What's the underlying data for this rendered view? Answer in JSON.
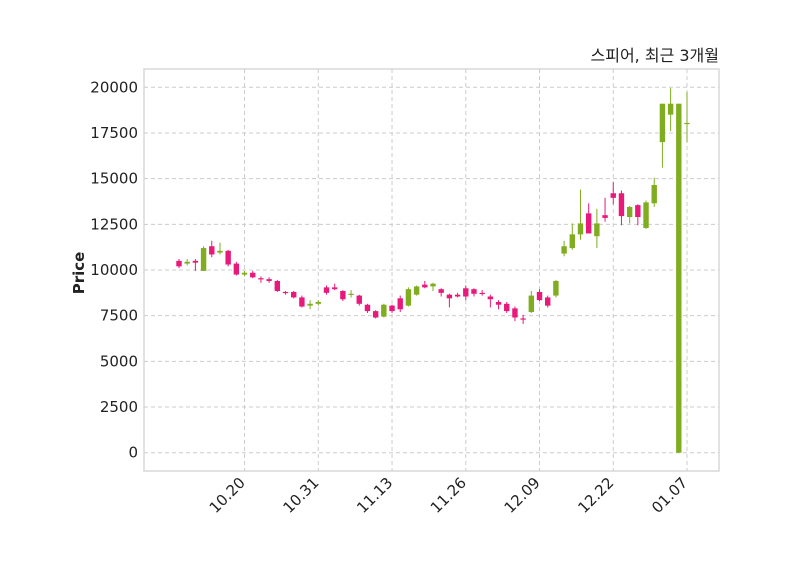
{
  "chart_data": {
    "type": "candlestick",
    "title": "스피어, 최근 3개월",
    "ylabel": "Price",
    "xlabel": "",
    "ylim": [
      -1000,
      21000
    ],
    "yticks": [
      0,
      2500,
      5000,
      7500,
      10000,
      12500,
      15000,
      17500,
      20000
    ],
    "xtick_labels": [
      "10.20",
      "10.31",
      "11.13",
      "11.26",
      "12.09",
      "12.22",
      "01.07"
    ],
    "xtick_indices": [
      8,
      17,
      26,
      35,
      44,
      53,
      62
    ],
    "grid": true,
    "colors": {
      "up": "#7fad1f",
      "down": "#e8197a",
      "grid": "#cccccc",
      "frame": "#d9d9d9"
    },
    "candles": [
      {
        "o": 10500,
        "h": 10600,
        "l": 10100,
        "c": 10200
      },
      {
        "o": 10350,
        "h": 10600,
        "l": 10250,
        "c": 10450
      },
      {
        "o": 10500,
        "h": 10600,
        "l": 9950,
        "c": 10400
      },
      {
        "o": 9950,
        "h": 11300,
        "l": 9950,
        "c": 11200
      },
      {
        "o": 11300,
        "h": 11600,
        "l": 10700,
        "c": 10850
      },
      {
        "o": 10950,
        "h": 11500,
        "l": 10850,
        "c": 11050
      },
      {
        "o": 11050,
        "h": 11100,
        "l": 10200,
        "c": 10300
      },
      {
        "o": 10350,
        "h": 10450,
        "l": 9700,
        "c": 9750
      },
      {
        "o": 9750,
        "h": 9950,
        "l": 9650,
        "c": 9850
      },
      {
        "o": 9850,
        "h": 9950,
        "l": 9550,
        "c": 9600
      },
      {
        "o": 9550,
        "h": 9650,
        "l": 9300,
        "c": 9500
      },
      {
        "o": 9500,
        "h": 9600,
        "l": 9300,
        "c": 9400
      },
      {
        "o": 9400,
        "h": 9450,
        "l": 8800,
        "c": 8850
      },
      {
        "o": 8800,
        "h": 8850,
        "l": 8650,
        "c": 8750
      },
      {
        "o": 8800,
        "h": 8850,
        "l": 8450,
        "c": 8500
      },
      {
        "o": 8500,
        "h": 8600,
        "l": 7950,
        "c": 8000
      },
      {
        "o": 8050,
        "h": 8350,
        "l": 7850,
        "c": 8150
      },
      {
        "o": 8150,
        "h": 8350,
        "l": 8050,
        "c": 8250
      },
      {
        "o": 9050,
        "h": 9150,
        "l": 8650,
        "c": 8750
      },
      {
        "o": 9050,
        "h": 9250,
        "l": 8900,
        "c": 8950
      },
      {
        "o": 8850,
        "h": 8900,
        "l": 8300,
        "c": 8400
      },
      {
        "o": 8650,
        "h": 8900,
        "l": 8500,
        "c": 8700
      },
      {
        "o": 8600,
        "h": 8650,
        "l": 8050,
        "c": 8150
      },
      {
        "o": 8100,
        "h": 8150,
        "l": 7650,
        "c": 7750
      },
      {
        "o": 7750,
        "h": 7800,
        "l": 7350,
        "c": 7400
      },
      {
        "o": 7450,
        "h": 8150,
        "l": 7400,
        "c": 8100
      },
      {
        "o": 8050,
        "h": 8100,
        "l": 7650,
        "c": 7750
      },
      {
        "o": 8450,
        "h": 8600,
        "l": 7700,
        "c": 7850
      },
      {
        "o": 8050,
        "h": 9050,
        "l": 8000,
        "c": 8950
      },
      {
        "o": 8650,
        "h": 9150,
        "l": 8600,
        "c": 9100
      },
      {
        "o": 9200,
        "h": 9400,
        "l": 9000,
        "c": 9050
      },
      {
        "o": 9100,
        "h": 9300,
        "l": 8850,
        "c": 9250
      },
      {
        "o": 8950,
        "h": 9000,
        "l": 8550,
        "c": 8750
      },
      {
        "o": 8650,
        "h": 8700,
        "l": 7950,
        "c": 8450
      },
      {
        "o": 8650,
        "h": 8750,
        "l": 8500,
        "c": 8550
      },
      {
        "o": 9000,
        "h": 9150,
        "l": 8350,
        "c": 8550
      },
      {
        "o": 8950,
        "h": 9000,
        "l": 8550,
        "c": 8700
      },
      {
        "o": 8750,
        "h": 8900,
        "l": 8600,
        "c": 8700
      },
      {
        "o": 8550,
        "h": 8650,
        "l": 7950,
        "c": 8400
      },
      {
        "o": 8250,
        "h": 8350,
        "l": 7850,
        "c": 8100
      },
      {
        "o": 8150,
        "h": 8250,
        "l": 7650,
        "c": 7750
      },
      {
        "o": 7900,
        "h": 8000,
        "l": 7200,
        "c": 7400
      },
      {
        "o": 7350,
        "h": 7550,
        "l": 7050,
        "c": 7300
      },
      {
        "o": 7700,
        "h": 8850,
        "l": 7650,
        "c": 8600
      },
      {
        "o": 8800,
        "h": 8950,
        "l": 8300,
        "c": 8350
      },
      {
        "o": 8500,
        "h": 8600,
        "l": 7950,
        "c": 8050
      },
      {
        "o": 8600,
        "h": 9450,
        "l": 8500,
        "c": 9400
      },
      {
        "o": 10900,
        "h": 11600,
        "l": 10750,
        "c": 11300
      },
      {
        "o": 11200,
        "h": 12550,
        "l": 11100,
        "c": 11950
      },
      {
        "o": 11950,
        "h": 14400,
        "l": 11650,
        "c": 12550
      },
      {
        "o": 13100,
        "h": 13650,
        "l": 12000,
        "c": 12000
      },
      {
        "o": 11850,
        "h": 13350,
        "l": 11200,
        "c": 12550
      },
      {
        "o": 13000,
        "h": 13950,
        "l": 12650,
        "c": 12850
      },
      {
        "o": 14200,
        "h": 14800,
        "l": 13600,
        "c": 13950
      },
      {
        "o": 14200,
        "h": 14350,
        "l": 12450,
        "c": 12950
      },
      {
        "o": 12900,
        "h": 13500,
        "l": 12550,
        "c": 13450
      },
      {
        "o": 13550,
        "h": 13600,
        "l": 12450,
        "c": 12900
      },
      {
        "o": 12300,
        "h": 13800,
        "l": 12250,
        "c": 13700
      },
      {
        "o": 13650,
        "h": 15050,
        "l": 13450,
        "c": 14650
      },
      {
        "o": 17000,
        "h": 19100,
        "l": 15600,
        "c": 19100
      },
      {
        "o": 18500,
        "h": 19950,
        "l": 17600,
        "c": 19100
      },
      {
        "o": 0,
        "h": 19100,
        "l": 0,
        "c": 19100
      },
      {
        "o": 18050,
        "h": 19750,
        "l": 17000,
        "c": 18050
      }
    ]
  }
}
